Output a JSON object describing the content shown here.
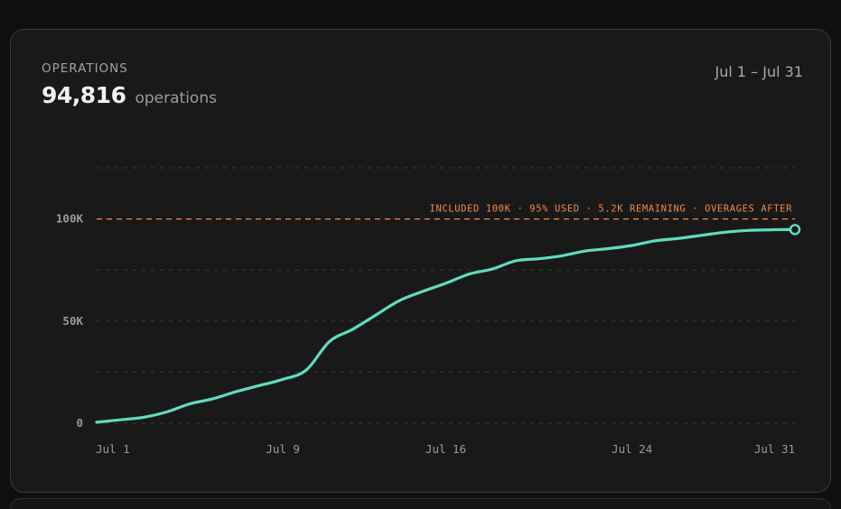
{
  "card": {
    "label": "OPERATIONS",
    "total_value": "94,816",
    "total_unit": "operations",
    "date_range": "Jul 1 – Jul 31"
  },
  "colors": {
    "line": "#5fdcc0",
    "threshold": "#f08a4b",
    "grid": "#3a3a3a",
    "axis_text": "#9a9a9a"
  },
  "chart_data": {
    "type": "line",
    "x_unit": "day of July",
    "x": [
      1,
      2,
      3,
      4,
      5,
      6,
      7,
      8,
      9,
      10,
      11,
      12,
      13,
      14,
      15,
      16,
      17,
      18,
      19,
      20,
      21,
      22,
      23,
      24,
      25,
      26,
      27,
      28,
      29,
      30,
      31
    ],
    "series": [
      {
        "values": [
          500,
          1700,
          2900,
          5500,
          9500,
          12000,
          15500,
          18500,
          21500,
          26000,
          40000,
          46000,
          53000,
          60000,
          64500,
          68500,
          73000,
          75500,
          79500,
          80500,
          82000,
          84300,
          85500,
          87000,
          89300,
          90500,
          92000,
          93500,
          94400,
          94700,
          94816
        ]
      }
    ],
    "ylim": [
      0,
      125000
    ],
    "yticks": [
      {
        "value": 0,
        "label": "0"
      },
      {
        "value": 50000,
        "label": "50K"
      },
      {
        "value": 100000,
        "label": "100K"
      }
    ],
    "xticks": [
      {
        "value": 1,
        "label": "Jul 1"
      },
      {
        "value": 9,
        "label": "Jul 9"
      },
      {
        "value": 16,
        "label": "Jul 16"
      },
      {
        "value": 24,
        "label": "Jul 24"
      },
      {
        "value": 31,
        "label": "Jul 31"
      }
    ],
    "threshold": {
      "value": 100000,
      "label": "INCLUDED 100K · 95% USED · 5.2K REMAINING · OVERAGES AFTER"
    },
    "grid": true
  }
}
